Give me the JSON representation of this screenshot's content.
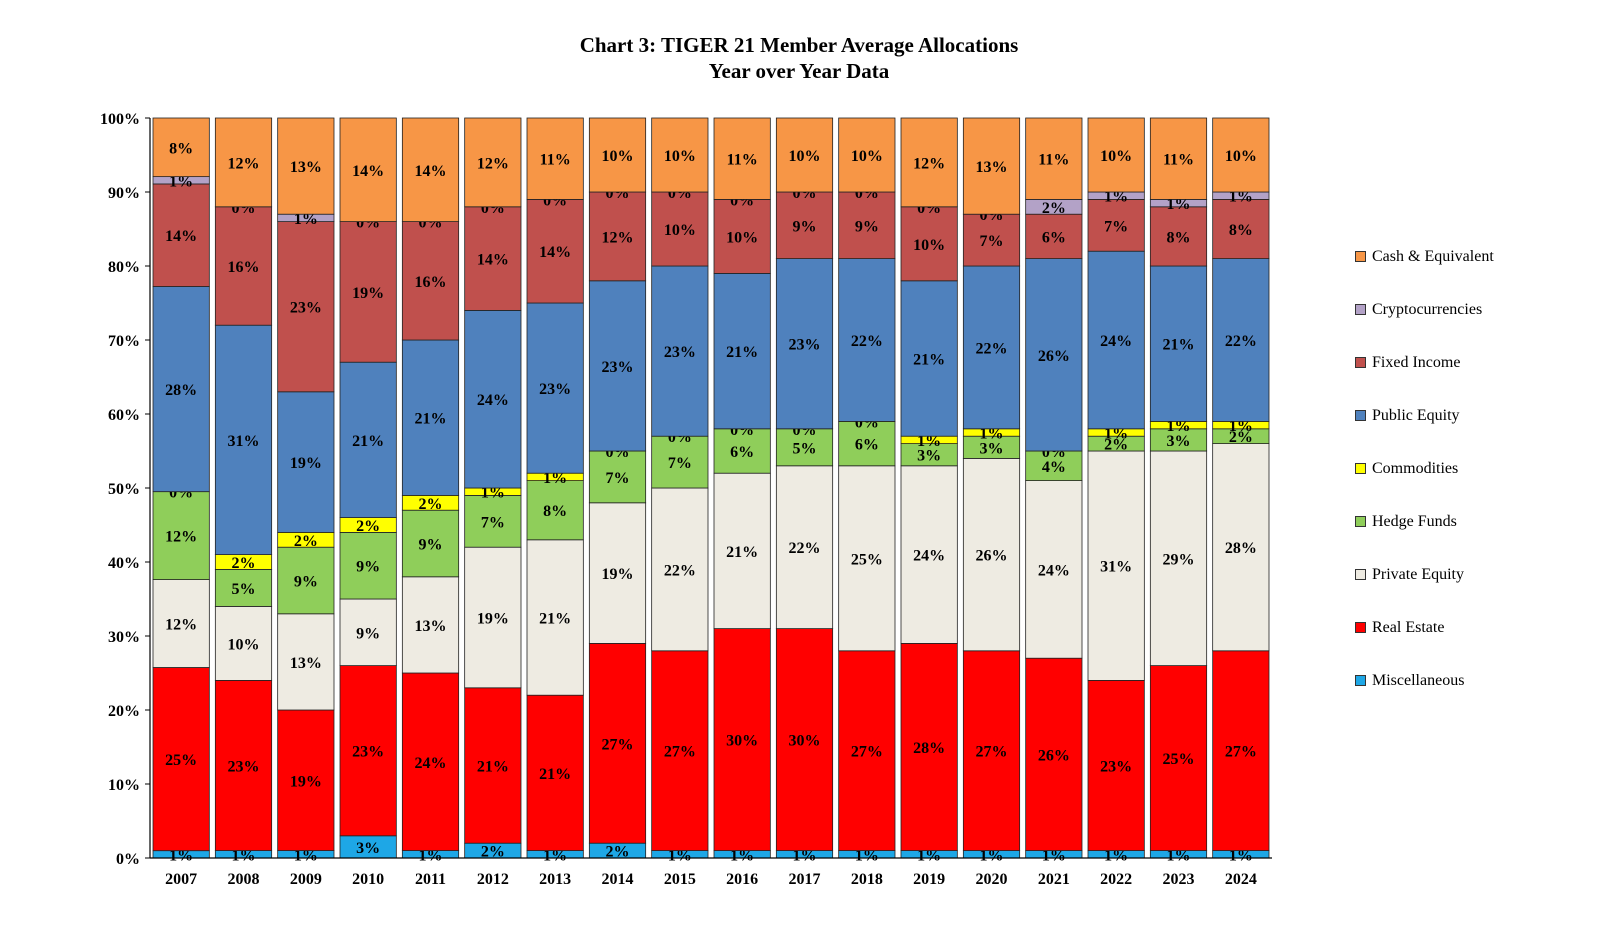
{
  "chart_data": {
    "type": "stacked_bar",
    "title": "Chart 3: TIGER 21 Member Average Allocations",
    "subtitle": "Year over Year Data",
    "categories": [
      "2007",
      "2008",
      "2009",
      "2010",
      "2011",
      "2012",
      "2013",
      "2014",
      "2015",
      "2016",
      "2017",
      "2018",
      "2019",
      "2020",
      "2021",
      "2022",
      "2023",
      "2024"
    ],
    "ylim": [
      0,
      100
    ],
    "yticks": [
      "0%",
      "10%",
      "20%",
      "30%",
      "40%",
      "50%",
      "60%",
      "70%",
      "80%",
      "90%",
      "100%"
    ],
    "legend_position": "right",
    "series": [
      {
        "name": "Miscellaneous",
        "color": "#1ea7e6",
        "values": [
          1,
          1,
          1,
          3,
          1,
          2,
          1,
          2,
          1,
          1,
          1,
          1,
          1,
          1,
          1,
          1,
          1,
          1
        ]
      },
      {
        "name": "Real Estate",
        "color": "#ff0000",
        "values": [
          25,
          23,
          19,
          23,
          24,
          21,
          21,
          27,
          27,
          30,
          30,
          27,
          28,
          27,
          26,
          23,
          25,
          27
        ]
      },
      {
        "name": "Private Equity",
        "color": "#eeebe2",
        "values": [
          12,
          10,
          13,
          9,
          13,
          19,
          21,
          19,
          22,
          21,
          22,
          25,
          24,
          26,
          24,
          31,
          29,
          28
        ]
      },
      {
        "name": "Hedge Funds",
        "color": "#8fce5a",
        "values": [
          12,
          5,
          9,
          9,
          9,
          7,
          8,
          7,
          7,
          6,
          5,
          6,
          3,
          3,
          4,
          2,
          3,
          2
        ]
      },
      {
        "name": "Commodities",
        "color": "#ffff00",
        "values": [
          0,
          2,
          2,
          2,
          2,
          1,
          1,
          0,
          0,
          0,
          0,
          0,
          1,
          1,
          0,
          1,
          1,
          1
        ]
      },
      {
        "name": "Public Equity",
        "color": "#4f81bd",
        "values": [
          28,
          31,
          19,
          21,
          21,
          24,
          23,
          23,
          23,
          21,
          23,
          22,
          21,
          22,
          26,
          24,
          21,
          22
        ]
      },
      {
        "name": "Fixed Income",
        "color": "#c0504d",
        "values": [
          14,
          16,
          23,
          19,
          16,
          14,
          14,
          12,
          10,
          10,
          9,
          9,
          10,
          7,
          6,
          7,
          8,
          8
        ]
      },
      {
        "name": "Cryptocurrencies",
        "color": "#b3a2c7",
        "values": [
          1,
          0,
          1,
          0,
          0,
          0,
          0,
          0,
          0,
          0,
          0,
          0,
          0,
          0,
          2,
          1,
          1,
          1
        ]
      },
      {
        "name": "Cash & Equivalent",
        "color": "#f79646",
        "values": [
          8,
          12,
          13,
          14,
          14,
          12,
          11,
          10,
          10,
          11,
          10,
          10,
          12,
          13,
          11,
          10,
          11,
          10
        ]
      }
    ]
  },
  "legend": [
    {
      "label": "Cash & Equivalent",
      "color": "#f79646"
    },
    {
      "label": "Cryptocurrencies",
      "color": "#b3a2c7"
    },
    {
      "label": "Fixed Income",
      "color": "#c0504d"
    },
    {
      "label": "Public Equity",
      "color": "#4f81bd"
    },
    {
      "label": "Commodities",
      "color": "#ffff00"
    },
    {
      "label": "Hedge Funds",
      "color": "#8fce5a"
    },
    {
      "label": "Private Equity",
      "color": "#eeebe2"
    },
    {
      "label": "Real Estate",
      "color": "#ff0000"
    },
    {
      "label": "Miscellaneous",
      "color": "#1ea7e6"
    }
  ]
}
